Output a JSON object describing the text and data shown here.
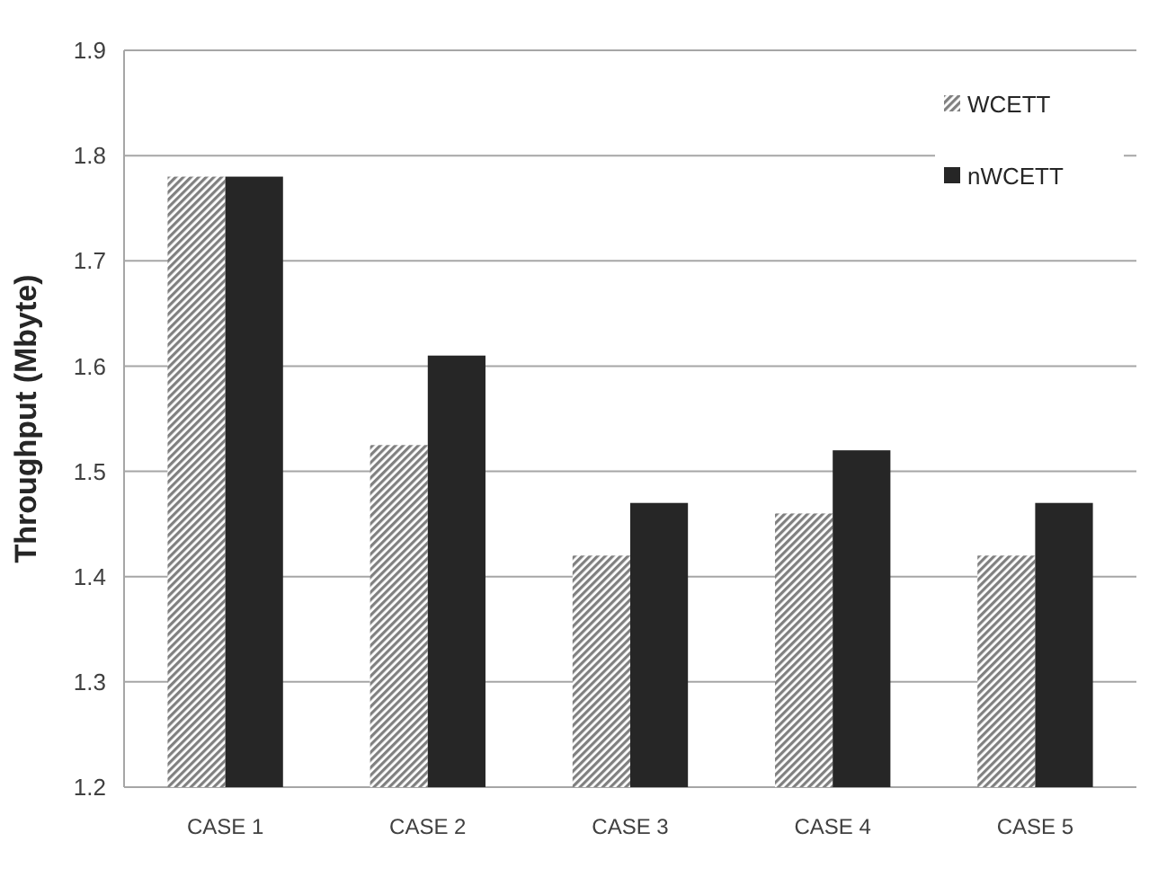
{
  "chart_data": {
    "type": "bar",
    "ylabel": "Throughput (Mbyte)",
    "categories": [
      "CASE 1",
      "CASE 2",
      "CASE 3",
      "CASE 4",
      "CASE 5"
    ],
    "series": [
      {
        "name": "WCETT",
        "color": "#808080",
        "values": [
          1.78,
          1.525,
          1.42,
          1.46,
          1.42
        ]
      },
      {
        "name": "nWCETT",
        "color": "#262626",
        "values": [
          1.78,
          1.61,
          1.47,
          1.52,
          1.47
        ]
      }
    ],
    "ylim": [
      1.2,
      1.9
    ],
    "yticks": [
      1.2,
      1.3,
      1.4,
      1.5,
      1.6,
      1.7,
      1.8,
      1.9
    ],
    "grid": "y",
    "legend": "top right"
  }
}
